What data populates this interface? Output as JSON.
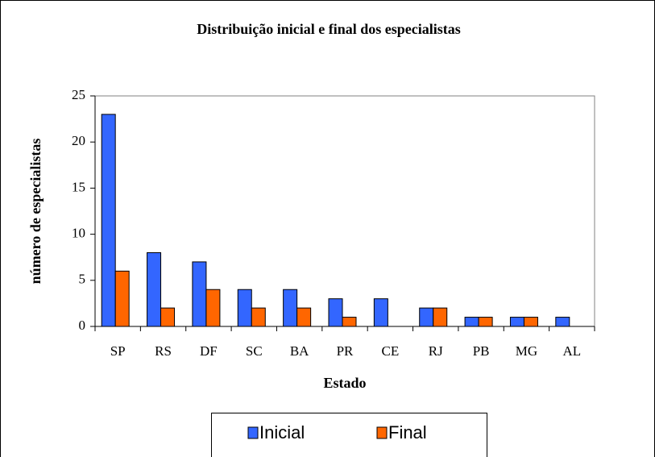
{
  "chart_data": {
    "type": "bar",
    "title": "Distribuição inicial e final dos especialistas",
    "x_label": "Estado",
    "y_label": "número de especialistas",
    "categories": [
      "SP",
      "RS",
      "DF",
      "SC",
      "BA",
      "PR",
      "CE",
      "RJ",
      "PB",
      "MG",
      "AL"
    ],
    "series": [
      {
        "name": "Inicial",
        "color": "#3366ff",
        "values": [
          23,
          8,
          7,
          4,
          4,
          3,
          3,
          2,
          1,
          1,
          1
        ]
      },
      {
        "name": "Final",
        "color": "#ff6600",
        "values": [
          6,
          2,
          4,
          2,
          2,
          1,
          0,
          2,
          1,
          1,
          0
        ]
      }
    ],
    "ylim": [
      0,
      25
    ],
    "yticks": [
      0,
      5,
      10,
      15,
      20,
      25
    ],
    "grid": false,
    "legend": "bottom"
  }
}
